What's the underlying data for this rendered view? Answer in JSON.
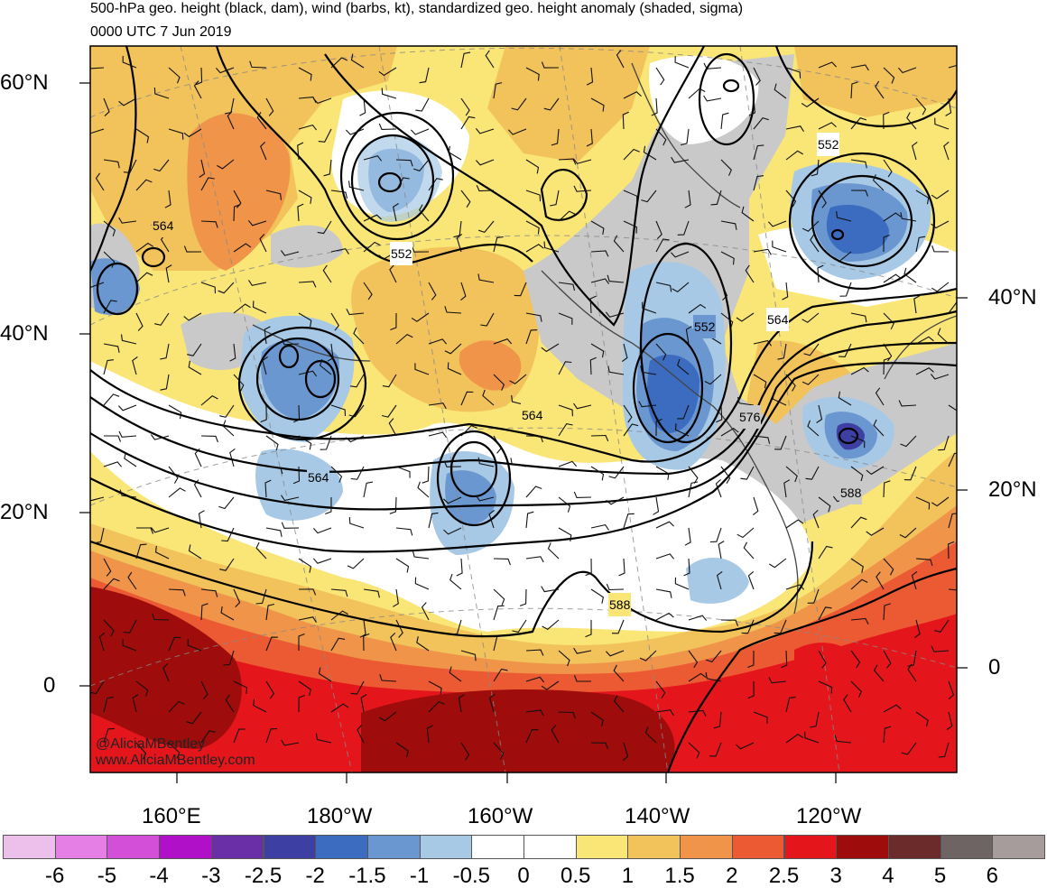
{
  "header": {
    "line1": "500-hPa geo. height (black, dam), wind (barbs, kt), standardized geo. height anomaly (shaded, sigma)",
    "line2": "0000 UTC 7 Jun 2019"
  },
  "axes": {
    "left_lat_labels": [
      "60°N",
      "40°N",
      "20°N",
      "0"
    ],
    "right_lat_labels": [
      "40°N",
      "20°N",
      "0"
    ],
    "lon_labels": [
      "160°E",
      "180°W",
      "160°W",
      "140°W",
      "120°W"
    ]
  },
  "contour_labels": [
    "564",
    "552",
    "552",
    "564",
    "564",
    "552",
    "564",
    "576",
    "588",
    "588"
  ],
  "credits": {
    "twitter": "@AliciaMBentley",
    "website": "www.AliciaMBentley.com"
  },
  "colorbar": {
    "colors": [
      "#ecc0ea",
      "#e57fe5",
      "#d44fd8",
      "#b110c9",
      "#6a2fa6",
      "#3e3fa3",
      "#3b6cc0",
      "#6a97cf",
      "#a7c9e6",
      "#ffffff",
      "#ffffff",
      "#f9e676",
      "#f2c25b",
      "#f0944a",
      "#ec5a34",
      "#e4161b",
      "#9e0c0c",
      "#6b2b2b",
      "#6e6464",
      "#a69c9c"
    ],
    "labels": [
      "-6",
      "-5",
      "-4",
      "-3",
      "-2.5",
      "-2",
      "-1.5",
      "-1",
      "-0.5",
      "0",
      "0.5",
      "1",
      "1.5",
      "2",
      "2.5",
      "3",
      "4",
      "5",
      "6"
    ]
  }
}
